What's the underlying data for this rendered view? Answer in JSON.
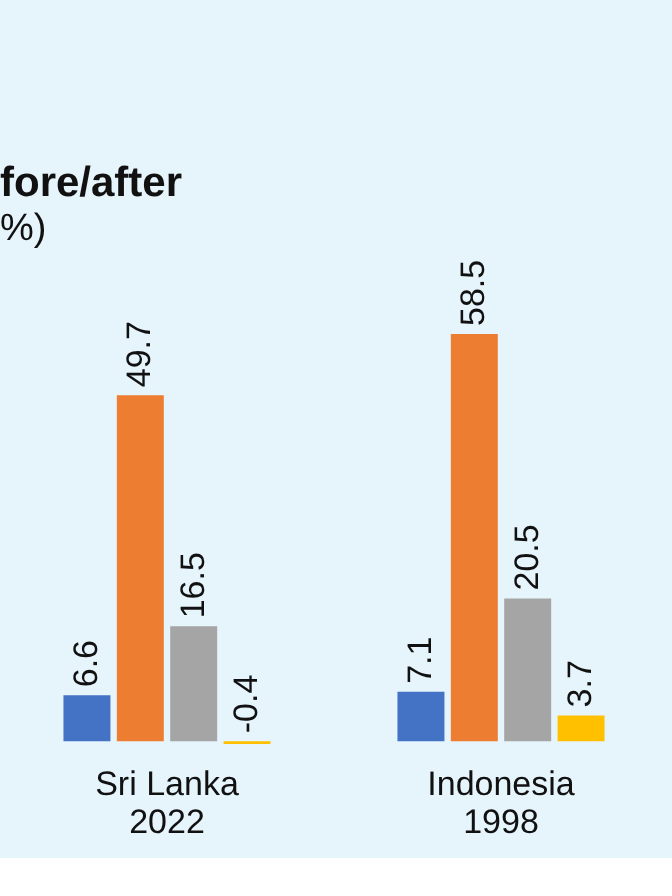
{
  "chart_data": {
    "type": "bar",
    "title": "fore/after",
    "subtitle": "%)",
    "categories": [
      "Sri Lanka\n2022",
      "Indonesia\n1998"
    ],
    "series": [
      {
        "color": "#4472c4",
        "values": [
          6.6,
          7.1
        ]
      },
      {
        "color": "#ed7d31",
        "values": [
          49.7,
          58.5
        ]
      },
      {
        "color": "#a5a5a5",
        "values": [
          16.5,
          20.5
        ]
      },
      {
        "color": "#ffc000",
        "values": [
          -0.4,
          3.7
        ]
      }
    ],
    "data_labels": true
  }
}
